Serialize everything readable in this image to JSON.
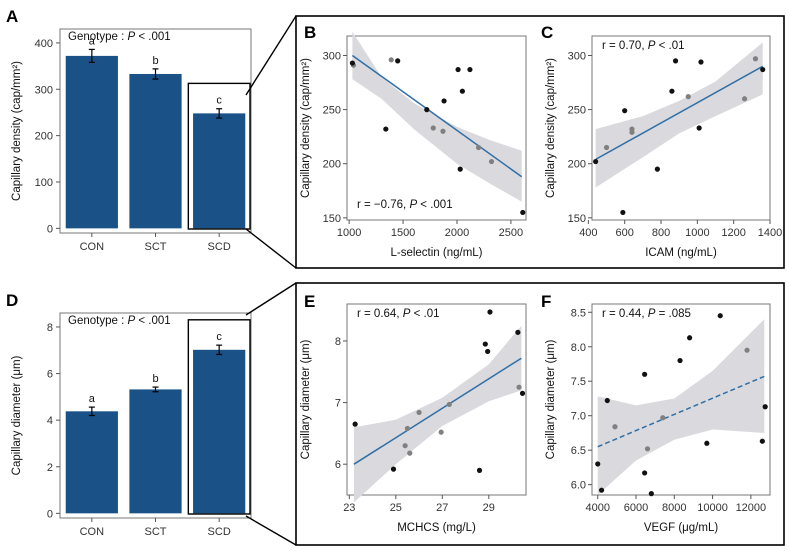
{
  "colors": {
    "bar": "#1a5287",
    "trend": "#2f6fa6",
    "band": "#d9d9de",
    "band_bg": "#ffffff",
    "point_dark": "#111111",
    "point_grey": "#808080"
  },
  "chart_data": [
    {
      "id": "A",
      "type": "bar",
      "annotation_prefix": "Genotype : ",
      "annotation_stat": "P < .001",
      "categories": [
        "CON",
        "SCT",
        "SCD"
      ],
      "values": [
        372,
        333,
        248
      ],
      "errors": [
        14,
        11,
        10
      ],
      "letters": [
        "a",
        "b",
        "c"
      ],
      "ylabel": "Capillary density (cap/mm²)",
      "ylim": [
        -10,
        430
      ],
      "yticks": [
        0,
        100,
        200,
        300,
        400
      ],
      "highlight_category": "SCD"
    },
    {
      "id": "B",
      "type": "scatter",
      "xlabel": "L-selectin (ng/mL)",
      "ylabel": "Capillary density (cap/mm²)",
      "stat": "r = −0.76, P < .001",
      "xlim": [
        980,
        2640
      ],
      "ylim": [
        148,
        318
      ],
      "xticks": [
        1000,
        1500,
        2000,
        2500
      ],
      "yticks": [
        150,
        200,
        250,
        300
      ],
      "trend": {
        "x": [
          1030,
          2600
        ],
        "y": [
          300,
          188
        ],
        "style": "solid"
      },
      "band": {
        "x": [
          1030,
          1300,
          1600,
          1800,
          2000,
          2300,
          2600
        ],
        "upper": [
          322,
          280,
          256,
          245,
          234,
          222,
          212
        ],
        "lower": [
          278,
          260,
          232,
          216,
          200,
          182,
          165
        ]
      },
      "points_dark": [
        {
          "x": 1030,
          "y": 293
        },
        {
          "x": 1340,
          "y": 232
        },
        {
          "x": 1450,
          "y": 295
        },
        {
          "x": 1720,
          "y": 250
        },
        {
          "x": 1880,
          "y": 258
        },
        {
          "x": 2010,
          "y": 287
        },
        {
          "x": 2030,
          "y": 195
        },
        {
          "x": 2050,
          "y": 267
        },
        {
          "x": 2120,
          "y": 287
        },
        {
          "x": 2610,
          "y": 155
        }
      ],
      "points_grey": [
        {
          "x": 1040,
          "y": 291
        },
        {
          "x": 1390,
          "y": 296
        },
        {
          "x": 1780,
          "y": 233
        },
        {
          "x": 1870,
          "y": 230
        },
        {
          "x": 2200,
          "y": 215
        },
        {
          "x": 2320,
          "y": 202
        }
      ]
    },
    {
      "id": "C",
      "type": "scatter",
      "xlabel": "ICAM (ng/mL)",
      "ylabel": "Capillary density (cap/mm²)",
      "stat": "r = 0.70, P < .01",
      "xlim": [
        420,
        1400
      ],
      "ylim": [
        148,
        318
      ],
      "xticks": [
        400,
        600,
        800,
        1000,
        1200,
        1400
      ],
      "xtick_labels": [
        "400",
        "600",
        "800",
        "1000",
        "1200",
        "1400"
      ],
      "yticks": [
        150,
        200,
        250,
        300
      ],
      "trend": {
        "x": [
          440,
          1360
        ],
        "y": [
          204,
          290
        ],
        "style": "solid"
      },
      "band": {
        "x": [
          440,
          700,
          900,
          1100,
          1360
        ],
        "upper": [
          232,
          244,
          258,
          276,
          312
        ],
        "lower": [
          178,
          206,
          228,
          244,
          264
        ]
      },
      "points_dark": [
        {
          "x": 440,
          "y": 202
        },
        {
          "x": 590,
          "y": 155
        },
        {
          "x": 600,
          "y": 249
        },
        {
          "x": 780,
          "y": 195
        },
        {
          "x": 860,
          "y": 267
        },
        {
          "x": 880,
          "y": 295
        },
        {
          "x": 1010,
          "y": 233
        },
        {
          "x": 1020,
          "y": 294
        },
        {
          "x": 1360,
          "y": 287
        }
      ],
      "points_grey": [
        {
          "x": 500,
          "y": 215
        },
        {
          "x": 640,
          "y": 232
        },
        {
          "x": 640,
          "y": 229
        },
        {
          "x": 950,
          "y": 262
        },
        {
          "x": 1260,
          "y": 260
        },
        {
          "x": 1320,
          "y": 297
        }
      ]
    },
    {
      "id": "D",
      "type": "bar",
      "annotation_prefix": "Genotype : ",
      "annotation_stat": "P < .001",
      "categories": [
        "CON",
        "SCT",
        "SCD"
      ],
      "values": [
        4.38,
        5.32,
        7.02
      ],
      "errors": [
        0.18,
        0.1,
        0.2
      ],
      "letters": [
        "a",
        "b",
        "c"
      ],
      "ylabel": "Capillary diameter (μm)",
      "ylim": [
        -0.2,
        8.6
      ],
      "yticks": [
        0,
        2,
        4,
        6,
        8
      ],
      "highlight_category": "SCD"
    },
    {
      "id": "E",
      "type": "scatter",
      "xlabel": "MCHCS (mg/L)",
      "ylabel": "Capillary diameter (μm)",
      "stat": "r = 0.64, P < .01",
      "xlim": [
        22.9,
        30.6
      ],
      "ylim": [
        5.5,
        8.6
      ],
      "xticks": [
        23,
        25,
        27,
        29
      ],
      "yticks": [
        6,
        7,
        8
      ],
      "trend": {
        "x": [
          23.2,
          30.4
        ],
        "y": [
          6.0,
          7.72
        ],
        "style": "solid"
      },
      "band": {
        "x": [
          23.2,
          25,
          27,
          29,
          30.4
        ],
        "upper": [
          6.6,
          6.72,
          7.08,
          7.62,
          8.25
        ],
        "lower": [
          5.38,
          6.0,
          6.62,
          7.02,
          7.2
        ]
      },
      "points_dark": [
        {
          "x": 23.25,
          "y": 6.65
        },
        {
          "x": 24.9,
          "y": 5.92
        },
        {
          "x": 28.6,
          "y": 5.9
        },
        {
          "x": 28.85,
          "y": 7.95
        },
        {
          "x": 28.95,
          "y": 7.83
        },
        {
          "x": 29.05,
          "y": 8.47
        },
        {
          "x": 30.25,
          "y": 8.14
        },
        {
          "x": 30.45,
          "y": 7.15
        }
      ],
      "points_grey": [
        {
          "x": 25.4,
          "y": 6.3
        },
        {
          "x": 25.5,
          "y": 6.58
        },
        {
          "x": 25.6,
          "y": 6.18
        },
        {
          "x": 26.0,
          "y": 6.84
        },
        {
          "x": 26.95,
          "y": 6.52
        },
        {
          "x": 27.3,
          "y": 6.97
        },
        {
          "x": 30.3,
          "y": 7.25
        }
      ]
    },
    {
      "id": "F",
      "type": "scatter",
      "xlabel": "VEGF (μg/mL)",
      "ylabel": "Capillary diameter (μm)",
      "stat": "r = 0.44, P = .085",
      "xlim": [
        3700,
        13000
      ],
      "ylim": [
        5.85,
        8.62
      ],
      "xticks": [
        4000,
        6000,
        8000,
        10000,
        12000
      ],
      "yticks": [
        6.0,
        6.5,
        7.0,
        7.5,
        8.0,
        8.5
      ],
      "ytick_labels": [
        "6.0",
        "6.5",
        "7.0",
        "7.5",
        "8.0",
        "8.5"
      ],
      "trend": {
        "x": [
          4000,
          12700
        ],
        "y": [
          6.55,
          7.57
        ],
        "style": "dashed"
      },
      "band": {
        "x": [
          4000,
          6000,
          8000,
          10000,
          12700
        ],
        "upper": [
          7.28,
          7.15,
          7.25,
          7.65,
          8.4
        ],
        "lower": [
          5.85,
          6.35,
          6.65,
          6.8,
          6.75
        ]
      },
      "points_dark": [
        {
          "x": 4000,
          "y": 6.3
        },
        {
          "x": 4200,
          "y": 5.92
        },
        {
          "x": 4500,
          "y": 7.22
        },
        {
          "x": 6450,
          "y": 7.6
        },
        {
          "x": 6450,
          "y": 6.17
        },
        {
          "x": 6800,
          "y": 5.87
        },
        {
          "x": 8300,
          "y": 7.8
        },
        {
          "x": 8800,
          "y": 8.13
        },
        {
          "x": 9700,
          "y": 6.6
        },
        {
          "x": 10400,
          "y": 8.45
        },
        {
          "x": 12600,
          "y": 6.63
        },
        {
          "x": 12750,
          "y": 7.13
        }
      ],
      "points_grey": [
        {
          "x": 4900,
          "y": 6.84
        },
        {
          "x": 6600,
          "y": 6.52
        },
        {
          "x": 7400,
          "y": 6.97
        },
        {
          "x": 11800,
          "y": 7.95
        }
      ]
    }
  ]
}
